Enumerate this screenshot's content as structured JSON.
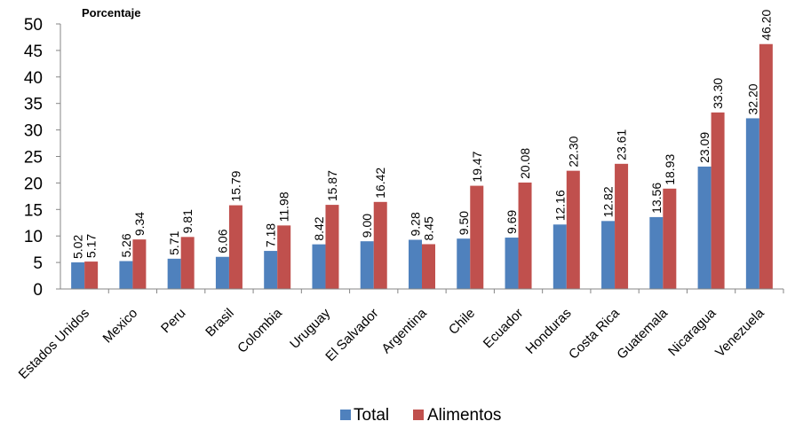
{
  "chart_data": {
    "type": "bar",
    "title": "",
    "xlabel": "",
    "ylabel": "Porcentaje",
    "ylim": [
      0,
      50
    ],
    "yticks": [
      "0",
      "5",
      "10",
      "15",
      "20",
      "25",
      "30",
      "35",
      "40",
      "45",
      "50"
    ],
    "grid": false,
    "legend_position": "bottom",
    "categories": [
      "Estados Unidos",
      "Mexico",
      "Peru",
      "Brasil",
      "Colombia",
      "Uruguay",
      "El Salvador",
      "Argentina",
      "Chile",
      "Ecuador",
      "Honduras",
      "Costa Rica",
      "Guatemala",
      "Nicaragua",
      "Venezuela"
    ],
    "series": [
      {
        "name": "Total",
        "color": "#4F81BD",
        "values": [
          5.02,
          5.26,
          5.71,
          6.06,
          7.18,
          8.42,
          9.0,
          9.28,
          9.5,
          9.69,
          12.16,
          12.82,
          13.56,
          23.09,
          32.2
        ],
        "labels": [
          "5.02",
          "5.26",
          "5.71",
          "6.06",
          "7.18",
          "8.42",
          "9.00",
          "9.28",
          "9.50",
          "9.69",
          "12.16",
          "12.82",
          "13.56",
          "23.09",
          "32.20"
        ]
      },
      {
        "name": "Alimentos",
        "color": "#C0504D",
        "values": [
          5.17,
          9.34,
          9.81,
          15.79,
          11.98,
          15.87,
          16.42,
          8.45,
          19.47,
          20.08,
          22.3,
          23.61,
          18.93,
          33.3,
          46.2
        ],
        "labels": [
          "5.17",
          "9.34",
          "9.81",
          "15.79",
          "11.98",
          "15.87",
          "16.42",
          "8.45",
          "19.47",
          "20.08",
          "22.30",
          "23.61",
          "18.93",
          "33.30",
          "46.20"
        ]
      }
    ]
  }
}
